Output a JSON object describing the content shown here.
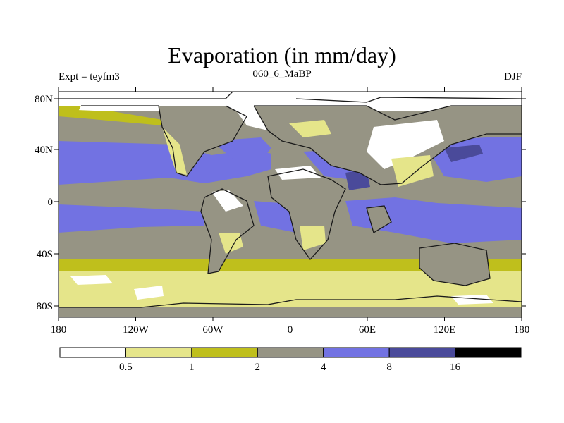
{
  "title": "Evaporation (in mm/day)",
  "left_label": "Expt = teyfm3",
  "center_label": "060_6_MaBP",
  "right_label": "DJF",
  "colors": {
    "lt_0_5": "#ffffff",
    "c_0_5_1": "#e5e58a",
    "c_1_2": "#bfbf1c",
    "c_2_4": "#969484",
    "c_4_8": "#7272e2",
    "c_8_16": "#4a4a9a",
    "gt_16": "#000000",
    "coast": "#1a1a1a"
  },
  "map": {
    "lon_ticks": [
      "180",
      "120W",
      "60W",
      "0",
      "60E",
      "120E",
      "180"
    ],
    "lat_ticks": [
      "80N",
      "40N",
      "0",
      "40S",
      "80S"
    ]
  },
  "colorbar": {
    "levels": [
      "0.5",
      "1",
      "2",
      "4",
      "8",
      "16"
    ],
    "colors": [
      "#ffffff",
      "#e5e58a",
      "#bfbf1c",
      "#969484",
      "#7272e2",
      "#4a4a9a",
      "#000000"
    ]
  }
}
